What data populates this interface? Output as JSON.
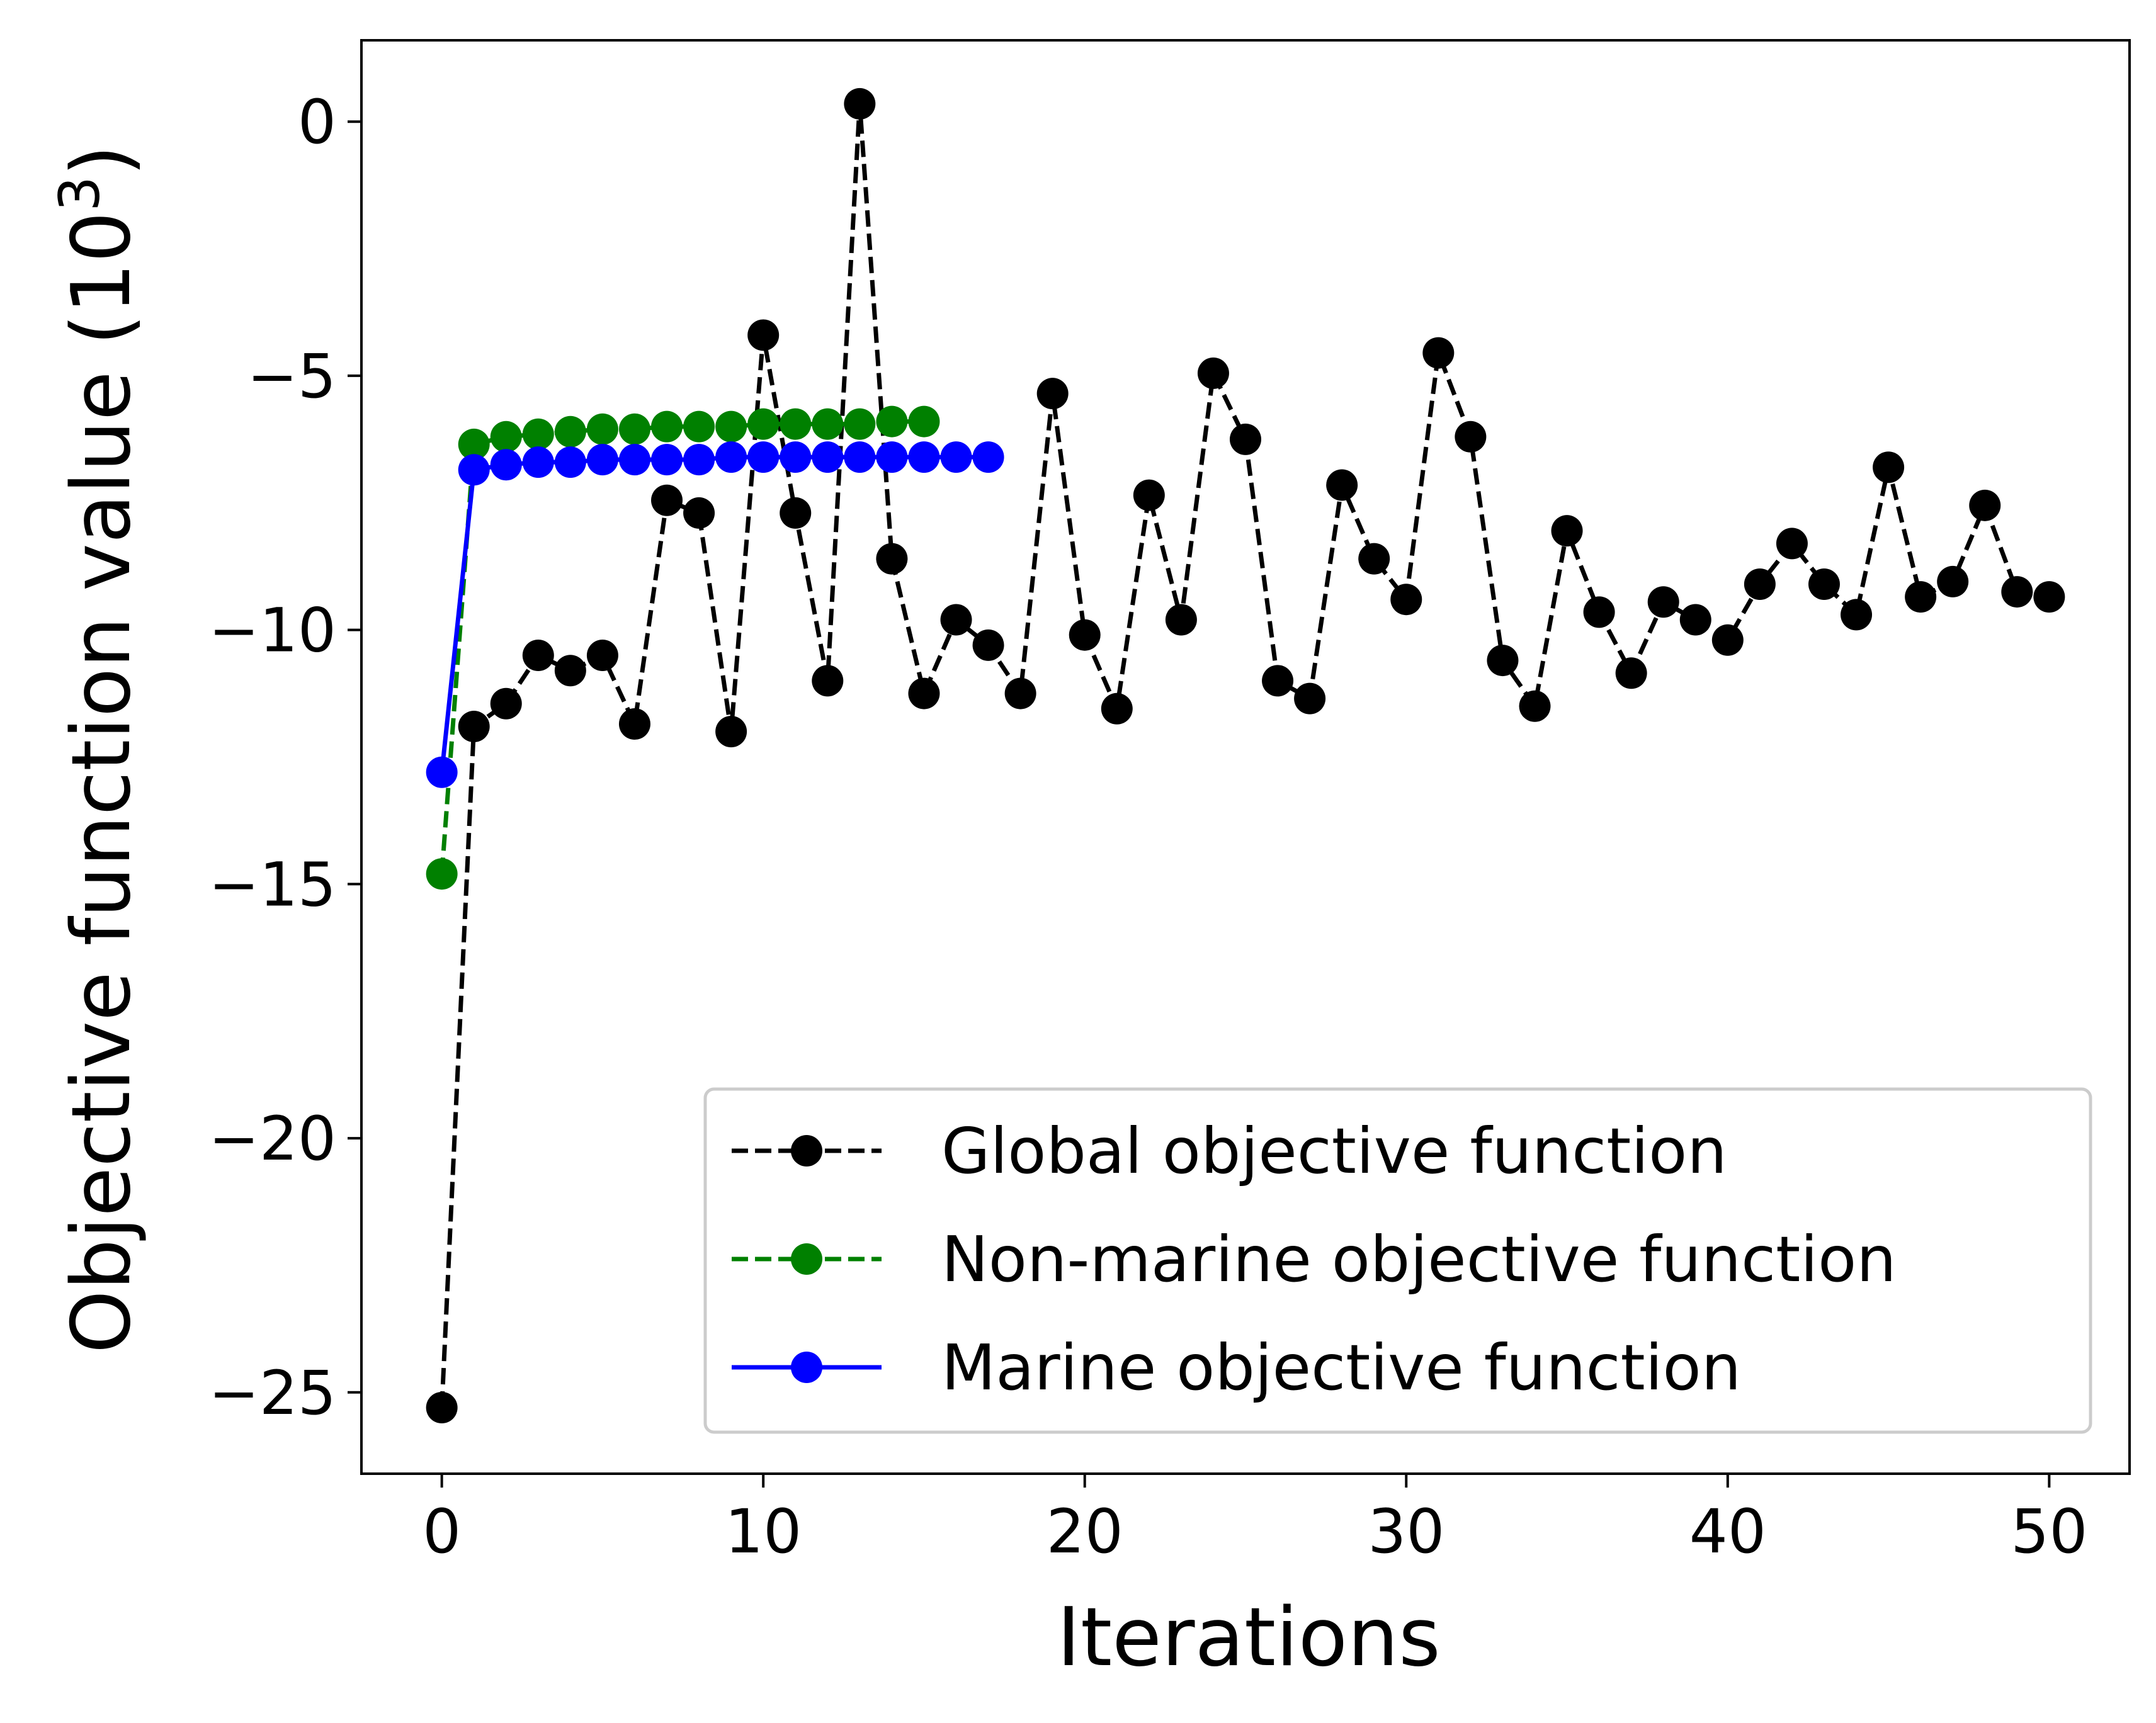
{
  "chart_data": {
    "type": "line",
    "xlabel": "Iterations",
    "ylabel": {
      "text": "Objective function value (10",
      "sup": "3",
      "close": ")"
    },
    "xlim": [
      -2.5,
      52.5
    ],
    "ylim": [
      -26.6,
      1.6
    ],
    "xticks": [
      0,
      10,
      20,
      30,
      40,
      50
    ],
    "yticks": [
      0,
      -5,
      -10,
      -15,
      -20,
      -25
    ],
    "xtick_labels": [
      "0",
      "10",
      "20",
      "30",
      "40",
      "50"
    ],
    "ytick_labels": [
      "0",
      "−5",
      "−10",
      "−15",
      "−20",
      "−25"
    ],
    "grid": false,
    "legend_position": "lower-right",
    "series": [
      {
        "name": "Global objective function",
        "color": "#000000",
        "linestyle": "dashed",
        "x": [
          0,
          1,
          2,
          3,
          4,
          5,
          6,
          7,
          8,
          9,
          10,
          11,
          12,
          13,
          14,
          15,
          16,
          17,
          18,
          19,
          20,
          21,
          22,
          23,
          24,
          25,
          26,
          27,
          28,
          29,
          30,
          31,
          32,
          33,
          34,
          35,
          36,
          37,
          38,
          39,
          40,
          41,
          42,
          43,
          44,
          45,
          46,
          47,
          48,
          49,
          50
        ],
        "values": [
          -25.3,
          -11.9,
          -11.45,
          -10.5,
          -10.8,
          -10.5,
          -11.85,
          -7.45,
          -7.7,
          -12.0,
          -4.2,
          -7.7,
          -11.0,
          0.35,
          -8.6,
          -11.25,
          -9.8,
          -10.3,
          -11.25,
          -5.35,
          -10.1,
          -11.55,
          -7.35,
          -9.8,
          -4.95,
          -6.25,
          -11.0,
          -11.35,
          -7.15,
          -8.6,
          -9.4,
          -4.55,
          -6.2,
          -10.6,
          -11.5,
          -8.05,
          -9.65,
          -10.85,
          -9.45,
          -9.8,
          -10.2,
          -9.1,
          -8.3,
          -9.1,
          -9.7,
          -6.8,
          -9.35,
          -9.05,
          -7.55,
          -9.25,
          -9.35
        ]
      },
      {
        "name": "Non-marine objective function",
        "color": "#008000",
        "linestyle": "dashed",
        "x": [
          0,
          1,
          2,
          3,
          4,
          5,
          6,
          7,
          8,
          9,
          10,
          11,
          12,
          13,
          14,
          15
        ],
        "values": [
          -14.8,
          -6.35,
          -6.2,
          -6.15,
          -6.1,
          -6.05,
          -6.05,
          -6.0,
          -6.0,
          -6.0,
          -5.95,
          -5.95,
          -5.95,
          -5.95,
          -5.9,
          -5.9
        ]
      },
      {
        "name": "Marine objective function",
        "color": "#0000ff",
        "linestyle": "solid",
        "x": [
          0,
          1,
          2,
          3,
          4,
          5,
          6,
          7,
          8,
          9,
          10,
          11,
          12,
          13,
          14,
          15,
          16,
          17
        ],
        "values": [
          -12.8,
          -6.85,
          -6.75,
          -6.7,
          -6.7,
          -6.65,
          -6.65,
          -6.65,
          -6.65,
          -6.6,
          -6.6,
          -6.6,
          -6.6,
          -6.6,
          -6.6,
          -6.6,
          -6.6,
          -6.6
        ]
      }
    ]
  }
}
